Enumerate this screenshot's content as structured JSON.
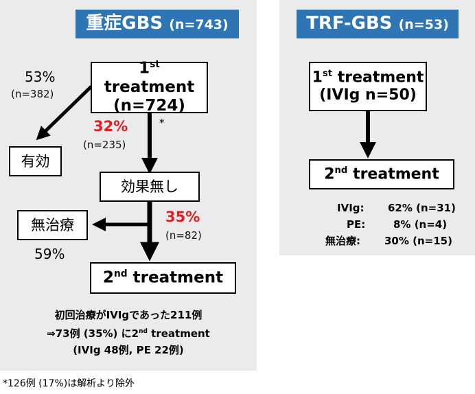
{
  "left": {
    "header": {
      "title": "重症GBS",
      "count": "(n=743)"
    },
    "first_box": {
      "title": "treatment",
      "sup": "st",
      "num": "1",
      "count": "(n=724)"
    },
    "effective": {
      "pct": "53%",
      "n": "(n=382)",
      "label": "有効"
    },
    "no_effect": {
      "pct": "32%",
      "n": "(n=235)",
      "label": "効果無し",
      "asterisk": "*"
    },
    "no_treat": {
      "label": "無治療",
      "pct": "59%"
    },
    "to_second": {
      "pct": "35%",
      "n": "(n=82)"
    },
    "second_box": {
      "num": "2",
      "sup": "nd",
      "title": "treatment"
    },
    "note": {
      "line1": "初回治療がIVIgであった211例",
      "line2_a": "⇒73例 (35%) に2",
      "line2_sup": "nd",
      "line2_b": " treatment",
      "line3": "(IVIg 48例, PE 22例)"
    }
  },
  "right": {
    "header": {
      "title": "TRF-GBS",
      "count": "(n=53)"
    },
    "first_box": {
      "num": "1",
      "sup": "st",
      "title": "treatment",
      "count": "(IVIg n=50)"
    },
    "second_box": {
      "num": "2",
      "sup": "nd",
      "title": "treatment"
    },
    "results": [
      {
        "label": "IVIg:",
        "value": "62% (n=31)"
      },
      {
        "label": "PE:",
        "value": "8% (n=4)"
      },
      {
        "label": "無治療:",
        "value": "30% (n=15)"
      }
    ]
  },
  "footnote": "*126例 (17%)は解析より除外",
  "colors": {
    "header_bg": "#2e75b6",
    "panel_bg": "#ebebeb",
    "highlight": "#e02020"
  }
}
